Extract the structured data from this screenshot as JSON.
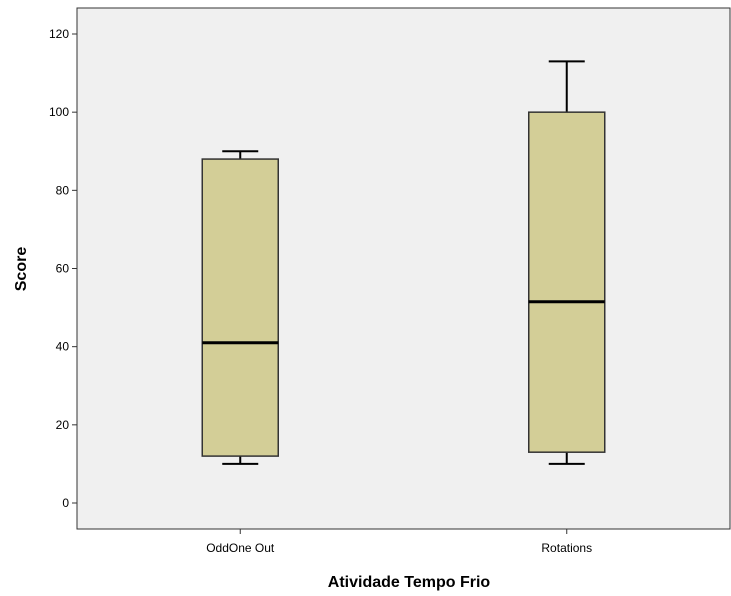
{
  "chart_data": {
    "type": "boxplot",
    "xlabel": "Atividade Tempo Frio",
    "ylabel": "Score",
    "ylim": [
      -7,
      123
    ],
    "yticks": [
      0,
      20,
      40,
      60,
      80,
      100,
      120
    ],
    "ytick_labels": [
      "0",
      "20",
      "40",
      "60",
      "80",
      "100",
      "120"
    ],
    "categories": [
      "OddOne Out",
      "Rotations"
    ],
    "boxes": [
      {
        "category": "OddOne Out",
        "min": 10,
        "q1": 12,
        "median": 41,
        "q3": 88,
        "max": 90
      },
      {
        "category": "Rotations",
        "min": 10,
        "q1": 13,
        "median": 51.5,
        "q3": 100,
        "max": 113
      }
    ],
    "grid": false,
    "colors": {
      "plot_background": "#f0f0f0",
      "box_fill": "#d3ce97",
      "box_stroke": "#333333",
      "median": "#000000"
    }
  }
}
